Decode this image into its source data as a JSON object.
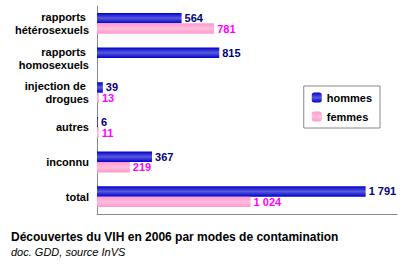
{
  "chart_data": {
    "type": "bar",
    "orientation": "horizontal",
    "title": "Découvertes du VIH en 2006 par modes de contamination",
    "subtitle": "doc. GDD, source InVS",
    "categories": [
      "rapports hétérosexuels",
      "rapports homosexuels",
      "injection de drogues",
      "autres",
      "inconnu",
      "total"
    ],
    "series": [
      {
        "name": "hommes",
        "color": "#0000cc",
        "values": [
          564,
          815,
          39,
          6,
          367,
          1791
        ],
        "value_labels": [
          "564",
          "815",
          "39",
          "6",
          "367",
          "1 791"
        ]
      },
      {
        "name": "femmes",
        "color": "#ff99cc",
        "values": [
          781,
          null,
          13,
          11,
          219,
          1024
        ],
        "value_labels": [
          "781",
          null,
          "13",
          "11",
          "219",
          "1 024"
        ]
      }
    ],
    "xlim": [
      0,
      2000
    ],
    "grid": false,
    "legend": "right",
    "data_labels": true,
    "tick_labels": "y"
  }
}
